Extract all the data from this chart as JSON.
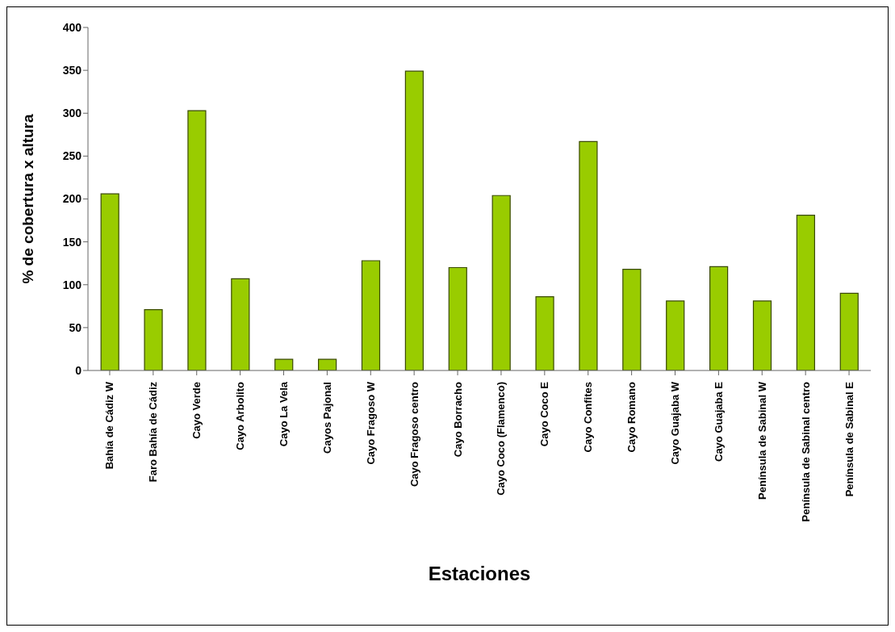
{
  "chart_data": {
    "type": "bar",
    "xlabel": "Estaciones",
    "ylabel": "% de cobertura x altura",
    "categories": [
      "Bahía de Cádiz W",
      "Faro Bahía de Cádiz",
      "Cayo Verde",
      "Cayo Arbolito",
      "Cayo La Vela",
      "Cayos Pajonal",
      "Cayo Fragoso W",
      "Cayo Fragoso centro",
      "Cayo Borracho",
      "Cayo Coco (Flamenco)",
      "Cayo Coco E",
      "Cayo Confites",
      "Cayo Romano",
      "Cayo Guajaba W",
      "Cayo Guajaba E",
      "Península de Sabinal W",
      "Península de Sabinal centro",
      "Península de Sabinal E"
    ],
    "values": [
      206,
      71,
      303,
      107,
      13,
      13,
      128,
      349,
      120,
      204,
      86,
      267,
      118,
      81,
      121,
      81,
      181,
      90
    ],
    "color": "#99cc00",
    "ylim": [
      0,
      400
    ],
    "yticks": [
      0,
      50,
      100,
      150,
      200,
      250,
      300,
      350,
      400
    ],
    "grid": false,
    "legend": false
  }
}
